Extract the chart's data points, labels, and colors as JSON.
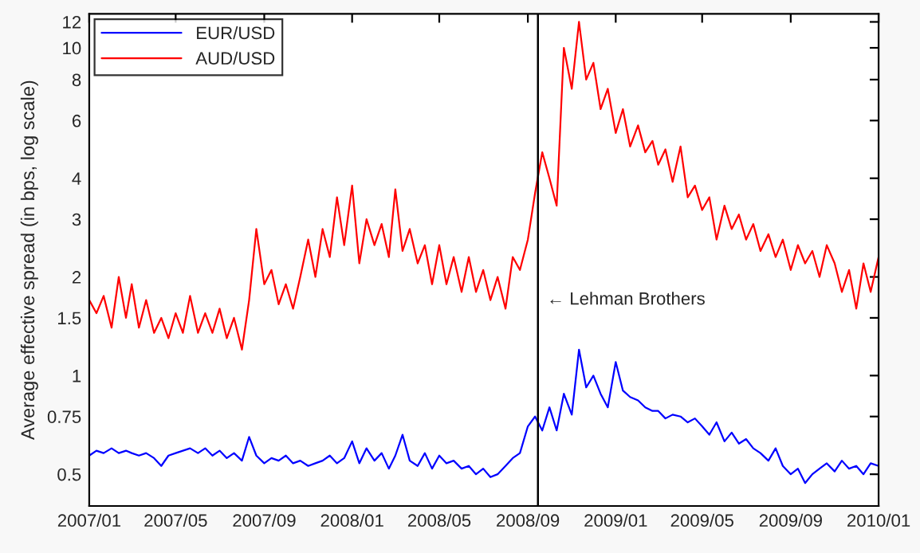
{
  "chart_data": {
    "type": "line",
    "ylabel": "Average effective spread (in bps, log scale)",
    "log": "y",
    "grid": false,
    "legend": "top left",
    "marker": "none",
    "line_style": "solid",
    "x": [
      "2007-01-01",
      "2007-01-11",
      "2007-01-21",
      "2007-02-01",
      "2007-02-11",
      "2007-02-21",
      "2007-03-01",
      "2007-03-11",
      "2007-03-21",
      "2007-04-01",
      "2007-04-11",
      "2007-04-21",
      "2007-05-01",
      "2007-05-11",
      "2007-05-21",
      "2007-06-01",
      "2007-06-11",
      "2007-06-21",
      "2007-07-01",
      "2007-07-11",
      "2007-07-21",
      "2007-08-01",
      "2007-08-11",
      "2007-08-21",
      "2007-09-01",
      "2007-09-11",
      "2007-09-21",
      "2007-10-01",
      "2007-10-11",
      "2007-10-21",
      "2007-11-01",
      "2007-11-11",
      "2007-11-21",
      "2007-12-01",
      "2007-12-11",
      "2007-12-21",
      "2008-01-01",
      "2008-01-11",
      "2008-01-21",
      "2008-02-01",
      "2008-02-11",
      "2008-02-21",
      "2008-03-01",
      "2008-03-11",
      "2008-03-21",
      "2008-04-01",
      "2008-04-11",
      "2008-04-21",
      "2008-05-01",
      "2008-05-11",
      "2008-05-21",
      "2008-06-01",
      "2008-06-11",
      "2008-06-21",
      "2008-07-01",
      "2008-07-11",
      "2008-07-21",
      "2008-08-01",
      "2008-08-11",
      "2008-08-21",
      "2008-09-01",
      "2008-09-11",
      "2008-09-21",
      "2008-10-01",
      "2008-10-11",
      "2008-10-21",
      "2008-11-01",
      "2008-11-11",
      "2008-11-21",
      "2008-12-01",
      "2008-12-11",
      "2008-12-21",
      "2009-01-01",
      "2009-01-11",
      "2009-01-21",
      "2009-02-01",
      "2009-02-11",
      "2009-02-21",
      "2009-03-01",
      "2009-03-11",
      "2009-03-21",
      "2009-04-01",
      "2009-04-11",
      "2009-04-21",
      "2009-05-01",
      "2009-05-11",
      "2009-05-21",
      "2009-06-01",
      "2009-06-11",
      "2009-06-21",
      "2009-07-01",
      "2009-07-11",
      "2009-07-21",
      "2009-08-01",
      "2009-08-11",
      "2009-08-21",
      "2009-09-01",
      "2009-09-11",
      "2009-09-21",
      "2009-10-01",
      "2009-10-11",
      "2009-10-21",
      "2009-11-01",
      "2009-11-11",
      "2009-11-21",
      "2009-12-01",
      "2009-12-11",
      "2009-12-21",
      "2010-01-01"
    ],
    "series": [
      {
        "name": "EUR/USD",
        "color": "#0000ff",
        "values": [
          0.57,
          0.59,
          0.58,
          0.6,
          0.58,
          0.59,
          0.58,
          0.57,
          0.58,
          0.56,
          0.53,
          0.57,
          0.58,
          0.59,
          0.6,
          0.58,
          0.6,
          0.57,
          0.59,
          0.56,
          0.58,
          0.55,
          0.65,
          0.57,
          0.54,
          0.56,
          0.55,
          0.57,
          0.54,
          0.55,
          0.53,
          0.54,
          0.55,
          0.57,
          0.54,
          0.56,
          0.63,
          0.54,
          0.6,
          0.55,
          0.58,
          0.52,
          0.57,
          0.66,
          0.55,
          0.53,
          0.58,
          0.52,
          0.57,
          0.54,
          0.55,
          0.52,
          0.53,
          0.5,
          0.52,
          0.49,
          0.5,
          0.53,
          0.56,
          0.58,
          0.7,
          0.75,
          0.68,
          0.8,
          0.68,
          0.88,
          0.76,
          1.2,
          0.92,
          1.0,
          0.88,
          0.8,
          1.1,
          0.9,
          0.86,
          0.84,
          0.8,
          0.78,
          0.78,
          0.74,
          0.76,
          0.75,
          0.72,
          0.74,
          0.7,
          0.66,
          0.72,
          0.63,
          0.67,
          0.62,
          0.64,
          0.6,
          0.58,
          0.55,
          0.6,
          0.53,
          0.5,
          0.52,
          0.47,
          0.5,
          0.52,
          0.54,
          0.51,
          0.55,
          0.52,
          0.53,
          0.5,
          0.54,
          0.53
        ]
      },
      {
        "name": "AUD/USD",
        "color": "#ff0000",
        "values": [
          1.7,
          1.55,
          1.75,
          1.4,
          2.0,
          1.5,
          1.9,
          1.4,
          1.7,
          1.35,
          1.5,
          1.3,
          1.55,
          1.35,
          1.75,
          1.35,
          1.55,
          1.35,
          1.6,
          1.3,
          1.5,
          1.2,
          1.7,
          2.8,
          1.9,
          2.1,
          1.65,
          1.9,
          1.6,
          2.0,
          2.6,
          2.0,
          2.8,
          2.3,
          3.5,
          2.5,
          3.8,
          2.2,
          3.0,
          2.5,
          2.9,
          2.3,
          3.7,
          2.4,
          2.8,
          2.2,
          2.5,
          1.9,
          2.5,
          1.9,
          2.3,
          1.8,
          2.3,
          1.8,
          2.1,
          1.7,
          2.0,
          1.6,
          2.3,
          2.1,
          2.6,
          3.6,
          4.8,
          4.0,
          3.3,
          10.0,
          7.5,
          12.0,
          8.0,
          9.0,
          6.5,
          7.5,
          5.5,
          6.5,
          5.0,
          5.8,
          4.8,
          5.2,
          4.4,
          4.9,
          3.9,
          5.0,
          3.5,
          3.8,
          3.2,
          3.5,
          2.6,
          3.3,
          2.8,
          3.1,
          2.6,
          2.9,
          2.4,
          2.7,
          2.3,
          2.6,
          2.1,
          2.5,
          2.2,
          2.4,
          2.0,
          2.5,
          2.2,
          1.8,
          2.1,
          1.6,
          2.2,
          1.8,
          2.3
        ]
      }
    ],
    "xlim": [
      "2007-01-01",
      "2010-01-01"
    ],
    "xticks": [
      {
        "value": "2007-01-01",
        "label": "2007/01"
      },
      {
        "value": "2007-05-01",
        "label": "2007/05"
      },
      {
        "value": "2007-09-01",
        "label": "2007/09"
      },
      {
        "value": "2008-01-01",
        "label": "2008/01"
      },
      {
        "value": "2008-05-01",
        "label": "2008/05"
      },
      {
        "value": "2008-09-01",
        "label": "2008/09"
      },
      {
        "value": "2009-01-01",
        "label": "2009/01"
      },
      {
        "value": "2009-05-01",
        "label": "2009/05"
      },
      {
        "value": "2009-09-01",
        "label": "2009/09"
      },
      {
        "value": "2010-01-01",
        "label": "2010/01"
      }
    ],
    "ylim": [
      0.4,
      12.7
    ],
    "yticks": [
      0.5,
      0.75,
      1,
      1.5,
      2,
      3,
      4,
      6,
      8,
      10,
      12
    ],
    "ref_lines": [
      {
        "axis": "x",
        "value": "2008-09-15",
        "color": "#000000",
        "line_style": "solid"
      }
    ],
    "annotations": [
      {
        "text": "← Lehman Brothers",
        "x": "2008-09-15",
        "y": 1.7
      }
    ]
  }
}
